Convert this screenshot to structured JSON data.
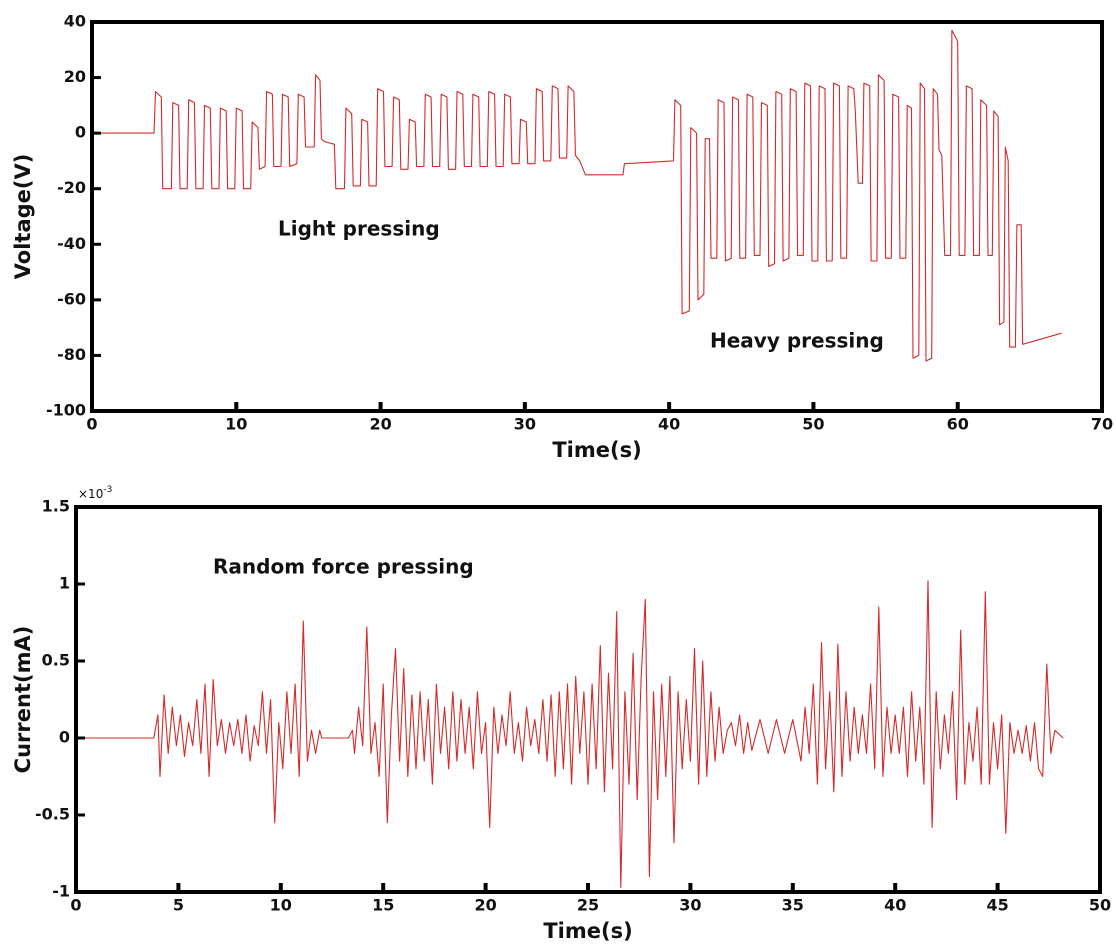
{
  "chart_data": [
    {
      "type": "line",
      "xlabel": "Time(s)",
      "ylabel": "Voltage(V)",
      "annotations": [
        "Light pressing",
        "Heavy pressing"
      ],
      "xlim": [
        0,
        70
      ],
      "ylim": [
        -100,
        40
      ],
      "xticks": [
        0,
        10,
        20,
        30,
        40,
        50,
        60,
        70
      ],
      "yticks": [
        -100,
        -80,
        -60,
        -40,
        -20,
        0,
        20,
        40
      ],
      "grid": false,
      "color": "#d42a2a",
      "x": [
        0,
        4.3,
        4.4,
        4.8,
        4.9,
        5.5,
        5.6,
        6.0,
        6.1,
        6.6,
        6.7,
        7.1,
        7.2,
        7.7,
        7.8,
        8.2,
        8.3,
        8.8,
        8.9,
        9.3,
        9.4,
        9.9,
        10.0,
        10.4,
        10.5,
        11.0,
        11.1,
        11.5,
        11.6,
        12.0,
        12.1,
        12.5,
        12.6,
        13.1,
        13.2,
        13.6,
        13.7,
        14.2,
        14.3,
        14.7,
        14.8,
        15.4,
        15.5,
        15.8,
        15.9,
        16.1,
        16.8,
        16.9,
        17.5,
        17.6,
        18.0,
        18.1,
        18.6,
        18.7,
        19.1,
        19.2,
        19.7,
        19.8,
        20.2,
        20.3,
        20.8,
        20.9,
        21.3,
        21.4,
        21.9,
        22.0,
        22.4,
        22.5,
        23.0,
        23.1,
        23.5,
        23.6,
        24.1,
        24.2,
        24.6,
        24.7,
        25.2,
        25.3,
        25.7,
        25.8,
        26.3,
        26.4,
        26.8,
        26.9,
        27.4,
        27.5,
        27.9,
        28.0,
        28.5,
        28.6,
        29.0,
        29.1,
        29.6,
        29.7,
        30.1,
        30.2,
        30.7,
        30.8,
        31.2,
        31.3,
        31.8,
        31.9,
        32.3,
        32.4,
        32.9,
        33.0,
        33.4,
        33.5,
        33.8,
        34.2,
        36.8,
        36.9,
        40.3,
        40.4,
        40.8,
        40.9,
        41.4,
        41.5,
        41.9,
        42.0,
        42.4,
        42.5,
        42.8,
        42.9,
        43.3,
        43.4,
        43.8,
        43.9,
        44.3,
        44.4,
        44.8,
        44.9,
        45.3,
        45.4,
        45.8,
        45.9,
        46.3,
        46.4,
        46.8,
        46.9,
        47.3,
        47.4,
        47.8,
        47.9,
        48.3,
        48.4,
        48.8,
        48.9,
        49.3,
        49.4,
        49.8,
        49.9,
        50.3,
        50.4,
        50.8,
        50.9,
        51.3,
        51.4,
        51.8,
        51.9,
        52.3,
        52.4,
        52.8,
        52.9,
        53.1,
        53.4,
        53.5,
        53.9,
        54.0,
        54.4,
        54.5,
        54.9,
        55.0,
        55.4,
        55.5,
        55.9,
        56.0,
        56.4,
        56.5,
        56.8,
        56.9,
        57.3,
        57.4,
        57.7,
        57.8,
        58.2,
        58.3,
        58.6,
        58.7,
        58.9,
        59.1,
        59.5,
        59.6,
        60.0,
        60.1,
        60.5,
        60.6,
        61.0,
        61.1,
        61.5,
        61.6,
        62.0,
        62.1,
        62.4,
        62.5,
        62.8,
        62.9,
        63.2,
        63.3,
        63.5,
        63.6,
        64.0,
        64.1,
        64.4,
        64.5,
        67.2
      ],
      "values": [
        0,
        0,
        15,
        13,
        -20,
        -20,
        11,
        10,
        -20,
        -20,
        12,
        11,
        -20,
        -20,
        10,
        9,
        -20,
        -20,
        9,
        8,
        -20,
        -20,
        9,
        8,
        -20,
        -20,
        4,
        2,
        -13,
        -12,
        15,
        14,
        -12,
        -12,
        14,
        13,
        -12,
        -11,
        14,
        13,
        -5,
        -5,
        21,
        19,
        -2,
        -3,
        -4,
        -20,
        -20,
        9,
        7,
        -19,
        -19,
        5,
        4,
        -19,
        -19,
        16,
        15,
        -12,
        -12,
        13,
        12,
        -13,
        -13,
        5,
        4,
        -12,
        -12,
        14,
        13,
        -12,
        -12,
        14,
        13,
        -13,
        -13,
        15,
        14,
        -12,
        -12,
        14,
        13,
        -12,
        -12,
        15,
        14,
        -12,
        -12,
        14,
        13,
        -11,
        -11,
        5,
        4,
        -11,
        -11,
        16,
        15,
        -10,
        -10,
        17,
        16,
        -9,
        -9,
        17,
        15,
        -8,
        -10,
        -15,
        -15,
        -11,
        -10,
        12,
        10,
        -65,
        -64,
        2,
        0,
        -60,
        -58,
        -2,
        -2,
        -45,
        -45,
        12,
        11,
        -46,
        -45,
        13,
        12,
        -45,
        -45,
        14,
        13,
        -44,
        -44,
        11,
        10,
        -48,
        -47,
        15,
        14,
        -46,
        -45,
        16,
        15,
        -44,
        -44,
        18,
        17,
        -46,
        -46,
        17,
        16,
        -46,
        -46,
        18,
        17,
        -45,
        -45,
        17,
        16,
        8,
        -18,
        -18,
        18,
        17,
        -46,
        -46,
        21,
        19,
        -45,
        -45,
        14,
        13,
        -45,
        -45,
        10,
        9,
        -81,
        -80,
        18,
        16,
        -82,
        -81,
        16,
        14,
        -6,
        -8,
        -44,
        -44,
        37,
        33,
        -44,
        -44,
        17,
        16,
        -44,
        -44,
        12,
        10,
        -44,
        -44,
        8,
        6,
        -69,
        -68,
        -5,
        -10,
        -77,
        -77,
        -33,
        -33,
        -76,
        -72
      ]
    },
    {
      "type": "line",
      "xlabel": "Time(s)",
      "ylabel": "Current(mA)",
      "y_exponent": {
        "base": "×10",
        "power": "-3"
      },
      "annotations": [
        "Random force pressing"
      ],
      "xlim": [
        0,
        50
      ],
      "ylim": [
        -1,
        1.5
      ],
      "xticks": [
        0,
        5,
        10,
        15,
        20,
        25,
        30,
        35,
        40,
        45,
        50
      ],
      "yticks": [
        -1,
        -0.5,
        0,
        0.5,
        1,
        1.5
      ],
      "grid": false,
      "color": "#d42a2a",
      "x": [
        0,
        3.8,
        4.0,
        4.1,
        4.3,
        4.5,
        4.7,
        4.9,
        5.1,
        5.3,
        5.5,
        5.7,
        5.9,
        6.1,
        6.3,
        6.5,
        6.7,
        6.9,
        7.1,
        7.3,
        7.5,
        7.7,
        7.9,
        8.1,
        8.3,
        8.5,
        8.7,
        8.9,
        9.1,
        9.3,
        9.5,
        9.7,
        9.9,
        10.1,
        10.3,
        10.5,
        10.7,
        10.9,
        11.1,
        11.3,
        11.5,
        11.7,
        11.9,
        12.0,
        13.3,
        13.5,
        13.6,
        13.8,
        14.0,
        14.2,
        14.4,
        14.6,
        14.8,
        15.0,
        15.2,
        15.4,
        15.6,
        15.8,
        16.0,
        16.2,
        16.4,
        16.6,
        16.8,
        17.0,
        17.2,
        17.4,
        17.6,
        17.8,
        18.0,
        18.2,
        18.4,
        18.6,
        18.8,
        19.0,
        19.2,
        19.4,
        19.6,
        19.8,
        20.0,
        20.2,
        20.4,
        20.6,
        20.8,
        21.0,
        21.2,
        21.4,
        21.6,
        21.8,
        22.0,
        22.2,
        22.4,
        22.6,
        22.8,
        23.0,
        23.2,
        23.4,
        23.6,
        23.8,
        24.0,
        24.2,
        24.4,
        24.6,
        24.8,
        25.0,
        25.2,
        25.4,
        25.6,
        25.8,
        26.0,
        26.2,
        26.4,
        26.6,
        26.8,
        27.0,
        27.2,
        27.4,
        27.6,
        27.8,
        28.0,
        28.2,
        28.4,
        28.6,
        28.8,
        29.0,
        29.2,
        29.4,
        29.6,
        29.8,
        30.0,
        30.2,
        30.4,
        30.6,
        30.8,
        31.0,
        31.2,
        31.4,
        31.6,
        31.8,
        32.0,
        32.2,
        32.4,
        32.6,
        32.8,
        33.0,
        33.4,
        33.8,
        34.2,
        34.6,
        35.0,
        35.4,
        35.6,
        35.8,
        36.0,
        36.2,
        36.4,
        36.6,
        36.8,
        37.0,
        37.2,
        37.4,
        37.6,
        37.8,
        38.0,
        38.2,
        38.4,
        38.6,
        38.8,
        39.0,
        39.2,
        39.4,
        39.6,
        39.8,
        40.0,
        40.2,
        40.4,
        40.6,
        40.8,
        41.0,
        41.2,
        41.4,
        41.6,
        41.8,
        42.0,
        42.2,
        42.4,
        42.6,
        42.8,
        43.0,
        43.2,
        43.4,
        43.6,
        43.8,
        44.0,
        44.2,
        44.4,
        44.6,
        44.8,
        45.0,
        45.2,
        45.4,
        45.6,
        45.8,
        46.0,
        46.2,
        46.4,
        46.6,
        46.8,
        47.0,
        47.2,
        47.4,
        47.6,
        47.8,
        48.2
      ],
      "values": [
        0,
        0,
        0.15,
        -0.25,
        0.28,
        -0.1,
        0.2,
        -0.05,
        0.15,
        -0.12,
        0.1,
        -0.05,
        0.25,
        -0.1,
        0.35,
        -0.25,
        0.38,
        -0.05,
        0.12,
        -0.1,
        0.1,
        -0.05,
        0.12,
        -0.1,
        0.15,
        -0.15,
        0.08,
        -0.05,
        0.3,
        -0.1,
        0.25,
        -0.55,
        0.1,
        -0.2,
        0.3,
        -0.1,
        0.35,
        -0.25,
        0.76,
        -0.15,
        0.05,
        -0.1,
        0.05,
        0,
        0,
        0.05,
        -0.1,
        0.2,
        -0.05,
        0.72,
        -0.1,
        0.1,
        -0.25,
        0.35,
        -0.55,
        0.15,
        0.58,
        -0.15,
        0.45,
        -0.25,
        0.28,
        -0.2,
        0.3,
        -0.15,
        0.25,
        -0.3,
        0.35,
        -0.1,
        0.2,
        -0.2,
        0.3,
        -0.15,
        0.25,
        -0.1,
        0.2,
        -0.2,
        0.3,
        -0.1,
        0.1,
        -0.58,
        0.2,
        -0.1,
        0.15,
        -0.05,
        0.3,
        -0.1,
        0.1,
        -0.15,
        0.2,
        -0.05,
        0.12,
        -0.1,
        0.25,
        -0.15,
        0.28,
        -0.25,
        0.3,
        -0.2,
        0.35,
        -0.3,
        0.4,
        -0.1,
        0.3,
        -0.3,
        0.35,
        -0.2,
        0.6,
        -0.35,
        0.42,
        -0.2,
        0.82,
        -0.97,
        0.3,
        -0.3,
        0.55,
        -0.4,
        0.4,
        0.9,
        -0.9,
        0.3,
        -0.4,
        0.35,
        -0.25,
        0.4,
        -0.68,
        0.3,
        -0.2,
        0.25,
        -0.15,
        0.58,
        -0.3,
        0.5,
        -0.25,
        0.3,
        -0.15,
        0.2,
        -0.1,
        0.05,
        0.1,
        -0.05,
        0.15,
        -0.1,
        0.1,
        -0.08,
        0.12,
        -0.1,
        0.12,
        -0.1,
        0.12,
        -0.15,
        0.2,
        -0.1,
        0.35,
        -0.3,
        0.62,
        -0.2,
        0.3,
        -0.35,
        0.61,
        -0.25,
        0.3,
        -0.15,
        0.2,
        -0.1,
        0.15,
        -0.1,
        0.35,
        -0.2,
        0.85,
        -0.25,
        0.2,
        -0.1,
        0.15,
        -0.1,
        0.2,
        -0.25,
        0.3,
        -0.15,
        0.2,
        -0.3,
        1.02,
        -0.58,
        0.3,
        -0.2,
        0.15,
        -0.1,
        0.3,
        -0.4,
        0.7,
        -0.3,
        0.1,
        -0.15,
        0.2,
        -0.3,
        0.95,
        -0.3,
        0.1,
        -0.2,
        0.15,
        -0.62,
        0.1,
        -0.1,
        0.05,
        -0.1,
        0.08,
        -0.15,
        0.1,
        -0.2,
        -0.25,
        0.48,
        -0.1,
        0.05,
        0
      ]
    }
  ]
}
